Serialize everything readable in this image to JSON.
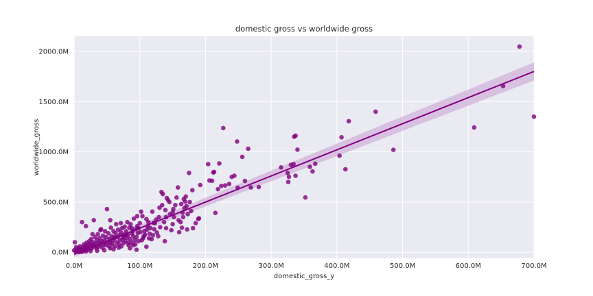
{
  "chart_data": {
    "type": "scatter",
    "title": "domestic gross vs worldwide gross",
    "xlabel": "domestic_gross_y",
    "ylabel": "worldwide_gross",
    "xlim": [
      0,
      700
    ],
    "ylim": [
      -60,
      2150
    ],
    "x_ticks": [
      0,
      100,
      200,
      300,
      400,
      500,
      600,
      700
    ],
    "x_tick_labels": [
      "0.0M",
      "100.0M",
      "200.0M",
      "300.0M",
      "400.0M",
      "500.0M",
      "600.0M",
      "700.0M"
    ],
    "y_ticks": [
      0,
      500,
      1000,
      1500,
      2000
    ],
    "y_tick_labels": [
      "0.0M",
      "500.0M",
      "1000.0M",
      "1500.0M",
      "2000.0M"
    ],
    "grid": true,
    "background": "#eaeaf2",
    "point_color": "#800080",
    "band_color": "#d2b3da",
    "regression": {
      "intercept": -20,
      "slope": 2.6,
      "ci_at_zero": 25,
      "ci_at_max": 90
    },
    "points": [
      [
        678,
        2048
      ],
      [
        700,
        1350
      ],
      [
        653,
        1655
      ],
      [
        609,
        1242
      ],
      [
        486,
        1020
      ],
      [
        459,
        1400
      ],
      [
        418,
        1305
      ],
      [
        413,
        826
      ],
      [
        407,
        1145
      ],
      [
        404,
        962
      ],
      [
        367,
        882
      ],
      [
        363,
        805
      ],
      [
        359,
        850
      ],
      [
        352,
        546
      ],
      [
        340,
        1022
      ],
      [
        337,
        1160
      ],
      [
        335,
        1150
      ],
      [
        337,
        762
      ],
      [
        334,
        878
      ],
      [
        330,
        870
      ],
      [
        327,
        752
      ],
      [
        325,
        790
      ],
      [
        326,
        700
      ],
      [
        315,
        845
      ],
      [
        281,
        650
      ],
      [
        269,
        645
      ],
      [
        265,
        1031
      ],
      [
        260,
        710
      ],
      [
        256,
        950
      ],
      [
        248,
        1103
      ],
      [
        249,
        643
      ],
      [
        244,
        762
      ],
      [
        240,
        750
      ],
      [
        236,
        680
      ],
      [
        230,
        665
      ],
      [
        227,
        1237
      ],
      [
        224,
        660
      ],
      [
        221,
        885
      ],
      [
        219,
        628
      ],
      [
        215,
        392
      ],
      [
        213,
        800
      ],
      [
        212,
        795
      ],
      [
        210,
        712
      ],
      [
        206,
        715
      ],
      [
        204,
        877
      ],
      [
        192,
        670
      ],
      [
        190,
        338
      ],
      [
        189,
        332
      ],
      [
        185,
        290
      ],
      [
        180,
        618
      ],
      [
        178,
        410
      ],
      [
        176,
        500
      ],
      [
        175,
        790
      ],
      [
        173,
        380
      ],
      [
        172,
        228
      ],
      [
        171,
        460
      ],
      [
        170,
        555
      ],
      [
        169,
        505
      ],
      [
        168,
        440
      ],
      [
        167,
        530
      ],
      [
        166,
        350
      ],
      [
        164,
        245
      ],
      [
        163,
        480
      ],
      [
        162,
        300
      ],
      [
        160,
        200
      ],
      [
        159,
        320
      ],
      [
        158,
        645
      ],
      [
        156,
        545
      ],
      [
        154,
        470
      ],
      [
        152,
        350
      ],
      [
        151,
        430
      ],
      [
        150,
        280
      ],
      [
        148,
        220
      ],
      [
        146,
        380
      ],
      [
        145,
        500
      ],
      [
        143,
        520
      ],
      [
        141,
        540
      ],
      [
        140,
        240
      ],
      [
        139,
        420
      ],
      [
        137,
        300
      ],
      [
        135,
        580
      ],
      [
        134,
        470
      ],
      [
        133,
        600
      ],
      [
        131,
        250
      ],
      [
        130,
        445
      ],
      [
        129,
        350
      ],
      [
        128,
        160
      ],
      [
        126,
        195
      ],
      [
        125,
        325
      ],
      [
        123,
        290
      ],
      [
        122,
        230
      ],
      [
        121,
        295
      ],
      [
        119,
        405
      ],
      [
        118,
        130
      ],
      [
        116,
        240
      ],
      [
        115,
        185
      ],
      [
        113,
        300
      ],
      [
        112,
        260
      ],
      [
        111,
        225
      ],
      [
        110,
        330
      ],
      [
        108,
        175
      ],
      [
        107,
        210
      ],
      [
        105,
        140
      ],
      [
        104,
        360
      ],
      [
        103,
        120
      ],
      [
        102,
        405
      ],
      [
        101,
        200
      ],
      [
        100,
        290
      ],
      [
        98,
        110
      ],
      [
        97,
        190
      ],
      [
        96,
        260
      ],
      [
        95,
        150
      ],
      [
        94,
        230
      ],
      [
        93,
        80
      ],
      [
        92,
        120
      ],
      [
        91,
        335
      ],
      [
        90,
        160
      ],
      [
        89,
        210
      ],
      [
        88,
        190
      ],
      [
        87,
        95
      ],
      [
        86,
        280
      ],
      [
        85,
        130
      ],
      [
        84,
        245
      ],
      [
        83,
        70
      ],
      [
        82,
        170
      ],
      [
        81,
        300
      ],
      [
        80,
        145
      ],
      [
        79,
        210
      ],
      [
        78,
        110
      ],
      [
        77,
        255
      ],
      [
        76,
        175
      ],
      [
        75,
        90
      ],
      [
        74,
        130
      ],
      [
        73,
        240
      ],
      [
        72,
        60
      ],
      [
        71,
        200
      ],
      [
        70,
        120
      ],
      [
        69,
        170
      ],
      [
        68,
        80
      ],
      [
        67,
        225
      ],
      [
        66,
        150
      ],
      [
        65,
        100
      ],
      [
        64,
        280
      ],
      [
        63,
        190
      ],
      [
        62,
        60
      ],
      [
        61,
        140
      ],
      [
        60,
        210
      ],
      [
        59,
        110
      ],
      [
        58,
        80
      ],
      [
        57,
        160
      ],
      [
        56,
        245
      ],
      [
        55,
        95
      ],
      [
        54,
        130
      ],
      [
        53,
        60
      ],
      [
        52,
        190
      ],
      [
        51,
        100
      ],
      [
        50,
        430
      ],
      [
        49,
        150
      ],
      [
        48,
        70
      ],
      [
        47,
        210
      ],
      [
        46,
        120
      ],
      [
        45,
        85
      ],
      [
        44,
        165
      ],
      [
        43,
        45
      ],
      [
        42,
        110
      ],
      [
        41,
        230
      ],
      [
        40,
        75
      ],
      [
        39,
        140
      ],
      [
        38,
        95
      ],
      [
        37,
        55
      ],
      [
        36,
        180
      ],
      [
        35,
        120
      ],
      [
        34,
        40
      ],
      [
        33,
        90
      ],
      [
        32,
        150
      ],
      [
        31,
        60
      ],
      [
        30,
        320
      ],
      [
        29,
        100
      ],
      [
        28,
        70
      ],
      [
        27,
        40
      ],
      [
        26,
        130
      ],
      [
        25,
        85
      ],
      [
        24,
        55
      ],
      [
        23,
        110
      ],
      [
        22,
        30
      ],
      [
        21,
        75
      ],
      [
        20,
        45
      ],
      [
        19,
        95
      ],
      [
        18,
        25
      ],
      [
        17,
        60
      ],
      [
        16,
        35
      ],
      [
        15,
        80
      ],
      [
        14,
        20
      ],
      [
        13,
        50
      ],
      [
        12,
        300
      ],
      [
        11,
        35
      ],
      [
        10,
        15
      ],
      [
        9,
        60
      ],
      [
        8,
        25
      ],
      [
        7,
        40
      ],
      [
        6,
        10
      ],
      [
        5,
        30
      ],
      [
        4,
        15
      ],
      [
        3,
        50
      ],
      [
        2,
        10
      ],
      [
        1,
        100
      ],
      [
        0,
        20
      ],
      [
        46,
        20
      ],
      [
        55,
        40
      ],
      [
        68,
        45
      ],
      [
        75,
        150
      ],
      [
        82,
        95
      ],
      [
        90,
        70
      ],
      [
        98,
        240
      ],
      [
        106,
        160
      ],
      [
        114,
        140
      ],
      [
        60,
        30
      ],
      [
        35,
        15
      ],
      [
        25,
        12
      ],
      [
        18,
        8
      ],
      [
        12,
        5
      ],
      [
        8,
        3
      ],
      [
        110,
        55
      ],
      [
        85,
        40
      ],
      [
        95,
        25
      ],
      [
        140,
        350
      ],
      [
        150,
        400
      ],
      [
        165,
        395
      ],
      [
        40,
        220
      ],
      [
        18,
        260
      ],
      [
        28,
        180
      ],
      [
        55,
        320
      ],
      [
        62,
        150
      ],
      [
        71,
        290
      ],
      [
        79,
        170
      ],
      [
        88,
        240
      ],
      [
        96,
        360
      ],
      [
        120,
        170
      ],
      [
        138,
        110
      ],
      [
        181,
        240
      ]
    ]
  }
}
